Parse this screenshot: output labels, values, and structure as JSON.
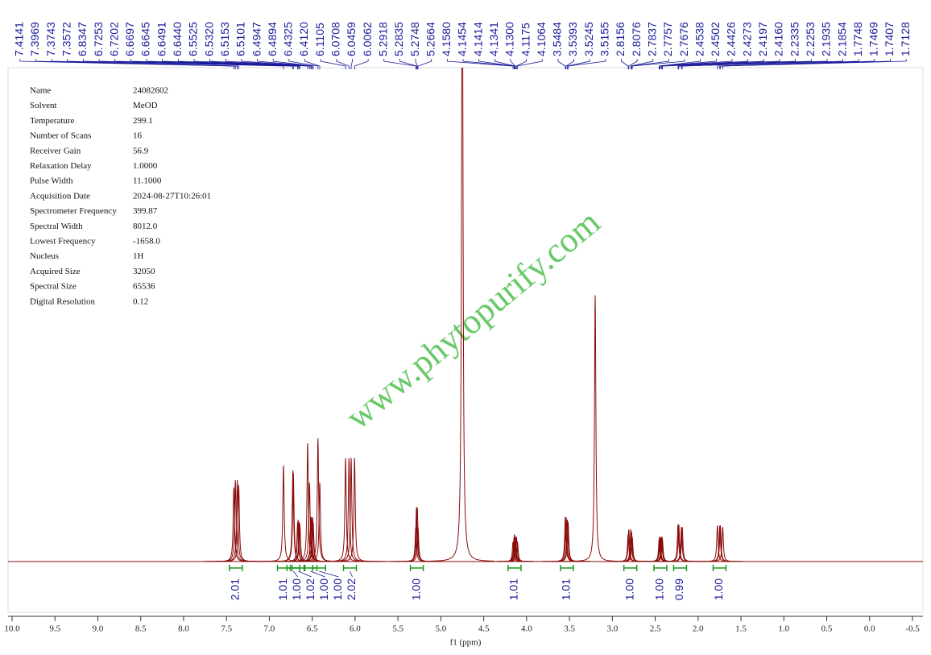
{
  "chart_data": {
    "type": "nmr",
    "xlabel": "f1 (ppm)",
    "xlim": [
      10,
      -0.5
    ],
    "xticks": [
      {
        "value": 10,
        "label": "10.0"
      },
      9.5,
      {
        "value": 9,
        "label": "9.0"
      },
      8.5,
      {
        "value": 8,
        "label": "8.0"
      },
      7.5,
      {
        "value": 7,
        "label": "7.0"
      },
      6.5,
      {
        "value": 6,
        "label": "6.0"
      },
      5.5,
      {
        "value": 5,
        "label": "5.0"
      },
      4.5,
      {
        "value": 4,
        "label": "4.0"
      },
      3.5,
      {
        "value": 3,
        "label": "3.0"
      },
      2.5,
      {
        "value": 2,
        "label": "2.0"
      },
      1.5,
      {
        "value": 1,
        "label": "1.0"
      },
      0.5,
      {
        "value": 0,
        "label": "0.0"
      },
      -0.5
    ],
    "ylim": [
      0,
      100
    ],
    "color": "#8b0a0a",
    "peaks": {
      "x": [
        7.414,
        7.397,
        7.374,
        7.357,
        6.835,
        6.725,
        6.72,
        6.67,
        6.665,
        6.649,
        6.644,
        6.553,
        6.532,
        6.515,
        6.51,
        6.495,
        6.489,
        6.433,
        6.412,
        6.111,
        6.071,
        6.046,
        6.006,
        5.292,
        5.284,
        5.275,
        5.266,
        4.75,
        4.158,
        4.145,
        4.141,
        4.134,
        4.13,
        4.118,
        4.106,
        3.548,
        3.539,
        3.525,
        3.516,
        3.2,
        2.816,
        2.808,
        2.784,
        2.776,
        2.768,
        2.454,
        2.45,
        2.443,
        2.427,
        2.42,
        2.416,
        2.234,
        2.225,
        2.194,
        2.185,
        1.775,
        1.747,
        1.741,
        1.713
      ],
      "values": [
        15,
        16.5,
        16.5,
        15.5,
        19.5,
        18.5,
        18,
        8,
        8.5,
        8,
        7.5,
        24,
        16,
        9,
        9,
        9,
        8,
        25,
        16,
        21,
        21,
        21,
        21,
        7,
        11,
        11,
        7,
        140,
        4,
        5,
        5.5,
        5,
        5,
        5,
        4,
        9,
        9,
        8.5,
        8,
        54,
        5.5,
        6.5,
        6.5,
        6,
        5,
        4.5,
        5,
        5,
        5,
        5,
        4.5,
        7.5,
        7.5,
        7,
        7,
        7.3,
        7.3,
        7.3,
        7
      ]
    },
    "peak_labels": [
      {
        "value": 7.4141,
        "label": "7.4141"
      },
      {
        "value": 7.3969,
        "label": "7.3969"
      },
      {
        "value": 7.3743,
        "label": "7.3743"
      },
      {
        "value": 7.3572,
        "label": "7.3572"
      },
      {
        "value": 6.8347,
        "label": "6.8347"
      },
      {
        "value": 6.7253,
        "label": "6.7253"
      },
      {
        "value": 6.7202,
        "label": "6.7202"
      },
      {
        "value": 6.6697,
        "label": "6.6697"
      },
      {
        "value": 6.6645,
        "label": "6.6645"
      },
      {
        "value": 6.6491,
        "label": "6.6491"
      },
      {
        "value": 6.644,
        "label": "6.6440"
      },
      {
        "value": 6.5525,
        "label": "6.5525"
      },
      {
        "value": 6.532,
        "label": "6.5320"
      },
      {
        "value": 6.5153,
        "label": "6.5153"
      },
      {
        "value": 6.5101,
        "label": "6.5101"
      },
      {
        "value": 6.4947,
        "label": "6.4947"
      },
      {
        "value": 6.4894,
        "label": "6.4894"
      },
      {
        "value": 6.4325,
        "label": "6.4325"
      },
      {
        "value": 6.412,
        "label": "6.4120"
      },
      {
        "value": 6.1105,
        "label": "6.1105"
      },
      {
        "value": 6.0708,
        "label": "6.0708"
      },
      {
        "value": 6.0459,
        "label": "6.0459"
      },
      {
        "value": 6.0062,
        "label": "6.0062"
      },
      {
        "value": 5.2918,
        "label": "5.2918"
      },
      {
        "value": 5.2835,
        "label": "5.2835"
      },
      {
        "value": 5.2748,
        "label": "5.2748"
      },
      {
        "value": 5.2664,
        "label": "5.2664"
      },
      {
        "value": 4.158,
        "label": "4.1580"
      },
      {
        "value": 4.1454,
        "label": "4.1454"
      },
      {
        "value": 4.1414,
        "label": "4.1414"
      },
      {
        "value": 4.1341,
        "label": "4.1341"
      },
      {
        "value": 4.13,
        "label": "4.1300"
      },
      {
        "value": 4.1175,
        "label": "4.1175"
      },
      {
        "value": 4.1064,
        "label": "4.1064"
      },
      {
        "value": 3.5484,
        "label": "3.5484"
      },
      {
        "value": 3.5393,
        "label": "3.5393"
      },
      {
        "value": 3.5245,
        "label": "3.5245"
      },
      {
        "value": 3.5155,
        "label": "3.5155"
      },
      {
        "value": 2.8156,
        "label": "2.8156"
      },
      {
        "value": 2.8076,
        "label": "2.8076"
      },
      {
        "value": 2.7837,
        "label": "2.7837"
      },
      {
        "value": 2.7757,
        "label": "2.7757"
      },
      {
        "value": 2.7676,
        "label": "2.7676"
      },
      {
        "value": 2.4538,
        "label": "2.4538"
      },
      {
        "value": 2.4502,
        "label": "2.4502"
      },
      {
        "value": 2.4426,
        "label": "2.4426"
      },
      {
        "value": 2.4273,
        "label": "2.4273"
      },
      {
        "value": 2.4197,
        "label": "2.4197"
      },
      {
        "value": 2.416,
        "label": "2.4160"
      },
      {
        "value": 2.2335,
        "label": "2.2335"
      },
      {
        "value": 2.2253,
        "label": "2.2253"
      },
      {
        "value": 2.1935,
        "label": "2.1935"
      },
      {
        "value": 2.1854,
        "label": "2.1854"
      },
      {
        "value": 1.7748,
        "label": "1.7748"
      },
      {
        "value": 1.7469,
        "label": "1.7469"
      },
      {
        "value": 1.7407,
        "label": "1.7407"
      },
      {
        "value": 1.7128,
        "label": "1.7128"
      }
    ],
    "integrals": {
      "x": [
        7.39,
        6.83,
        6.72,
        6.66,
        6.52,
        6.42,
        6.06,
        5.28,
        4.14,
        3.53,
        2.79,
        2.44,
        2.21,
        1.75
      ],
      "values": [
        2.01,
        1.01,
        1,
        1.02,
        1,
        1,
        2.02,
        1,
        1.01,
        1.01,
        1,
        1,
        0.99,
        1
      ],
      "value_labels": [
        "2.01",
        "1.01",
        "1.00",
        "1.02",
        "1.00",
        "1.00",
        "2.02",
        "1.00",
        "1.01",
        "1.01",
        "1.00",
        "1.00",
        "0.99",
        "1.00"
      ]
    }
  },
  "parameters": [
    [
      "Name",
      "24082602"
    ],
    [
      "Solvent",
      "MeOD"
    ],
    [
      "Temperature",
      "299.1"
    ],
    [
      "Number of Scans",
      "16"
    ],
    [
      "Receiver Gain",
      "56.9"
    ],
    [
      "Relaxation Delay",
      "1.0000"
    ],
    [
      "Pulse Width",
      "11.1000"
    ],
    [
      "Acquisition Date",
      "2024-08-27T10:26:01"
    ],
    [
      "Spectrometer Frequency",
      "399.87"
    ],
    [
      "Spectral Width",
      "8012.0"
    ],
    [
      "Lowest Frequency",
      "-1658.0"
    ],
    [
      "Nucleus",
      "1H"
    ],
    [
      "Acquired Size",
      "32050"
    ],
    [
      "Spectral Size",
      "65536"
    ],
    [
      "Digital Resolution",
      "0.12"
    ]
  ],
  "watermark": "www.phytopurify.com"
}
